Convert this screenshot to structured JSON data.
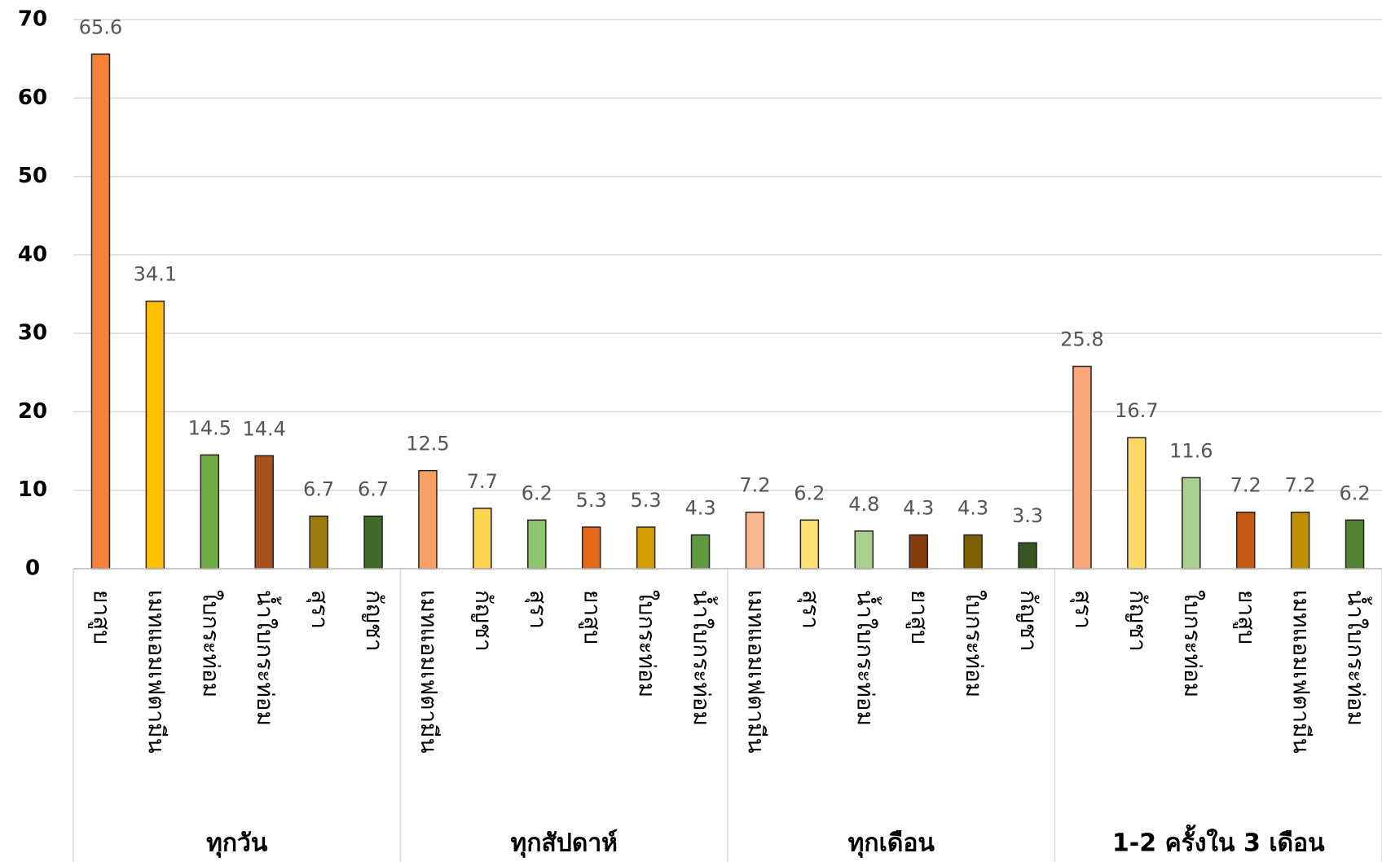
{
  "chart_data": {
    "type": "bar",
    "ylim": [
      0,
      70
    ],
    "yticks": [
      0,
      10,
      20,
      30,
      40,
      50,
      60,
      70
    ],
    "grid": true,
    "groups": [
      {
        "name": "ทุกวัน",
        "categories": [
          "ยาสูบ",
          "เมทแอมเฟตามีน",
          "ใบกระท่อม",
          "น้ำใบกระท่อม",
          "สุรา",
          "กัญชา"
        ],
        "values": [
          65.6,
          34.1,
          14.5,
          14.4,
          6.7,
          6.7
        ],
        "colors": [
          "#F4823A",
          "#FFC000",
          "#70AD47",
          "#A5521E",
          "#9E7C0C",
          "#3F6B26"
        ]
      },
      {
        "name": "ทุกสัปดาห์",
        "categories": [
          "เมทแอมเฟตามีน",
          "กัญชา",
          "สุรา",
          "ยาสูบ",
          "ใบกระท่อม",
          "น้ำใบกระท่อม"
        ],
        "values": [
          12.5,
          7.7,
          6.2,
          5.3,
          5.3,
          4.3
        ],
        "colors": [
          "#F8A065",
          "#FFD54F",
          "#8CC56A",
          "#E8681A",
          "#D4A000",
          "#5E9A3C"
        ]
      },
      {
        "name": "ทุกเดือน",
        "categories": [
          "เมทแอมเฟตามีน",
          "สุรา",
          "น้ำใบกระท่อม",
          "ยาสูบ",
          "ใบกระท่อม",
          "กัญชา"
        ],
        "values": [
          7.2,
          6.2,
          4.8,
          4.3,
          4.3,
          3.3
        ],
        "colors": [
          "#F9B990",
          "#FFE070",
          "#A9D08E",
          "#843C0C",
          "#7F6000",
          "#375623"
        ]
      },
      {
        "name": "1-2 ครั้งใน 3 เดือน",
        "categories": [
          "สุรา",
          "กัญชา",
          "ใบกระท่อม",
          "ยาสูบ",
          "เมทแอมเฟตามีน",
          "น้ำใบกระท่อม"
        ],
        "values": [
          25.8,
          16.7,
          11.6,
          7.2,
          7.2,
          6.2
        ],
        "colors": [
          "#F8A878",
          "#FFD966",
          "#A9D08E",
          "#C55A11",
          "#BF9000",
          "#548235"
        ]
      }
    ]
  }
}
